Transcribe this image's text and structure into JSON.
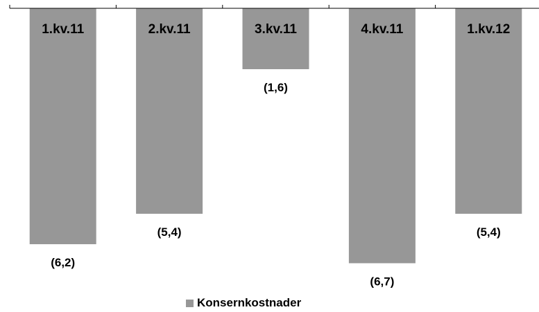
{
  "chart_data": {
    "type": "bar",
    "categories": [
      "1.kv.11",
      "2.kv.11",
      "3.kv.11",
      "4.kv.11",
      "1.kv.12"
    ],
    "series": [
      {
        "name": "Konsernkostnader",
        "values": [
          -6.2,
          -5.4,
          -1.6,
          -6.7,
          -5.4
        ]
      }
    ],
    "data_labels": [
      "(6,2)",
      "(5,4)",
      "(1,6)",
      "(6,7)",
      "(5,4)"
    ],
    "ylim": [
      -6.7,
      0
    ],
    "grid": false,
    "legend_position": "bottom",
    "colors": {
      "bar": "#979797",
      "axis": "#000000",
      "text": "#000000"
    }
  },
  "legend": {
    "label": "Konsernkostnader"
  }
}
